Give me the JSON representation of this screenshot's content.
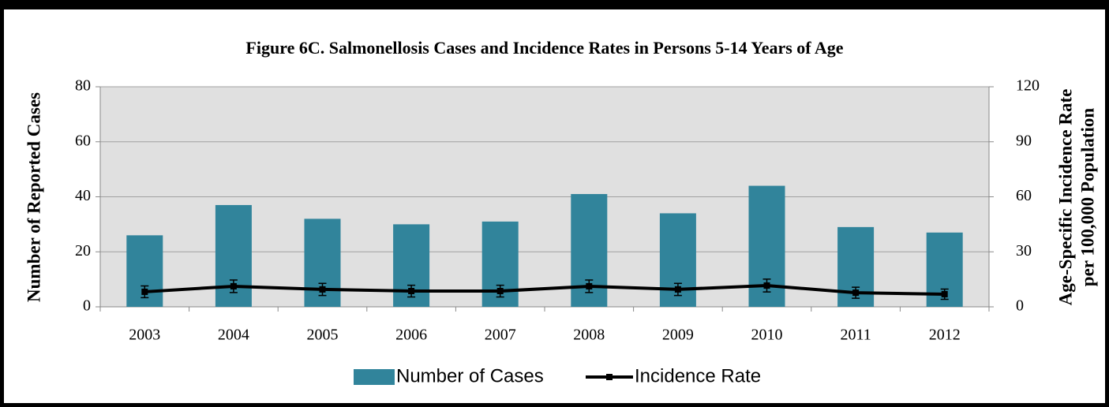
{
  "chart_data": {
    "type": "bar_line",
    "title": "Figure 6C. Salmonellosis Cases and Incidence Rates in Persons 5-14 Years of Age",
    "ylabel": "Number of Reported Cases",
    "y2label": [
      "Age-Specific Incidence Rate",
      "per 100,000 Population"
    ],
    "categories": [
      "2003",
      "2004",
      "2005",
      "2006",
      "2007",
      "2008",
      "2009",
      "2010",
      "2011",
      "2012"
    ],
    "series": [
      {
        "name": "Number of Cases",
        "type": "bar",
        "color": "#31849b",
        "values": [
          26,
          37,
          32,
          30,
          31,
          41,
          34,
          44,
          29,
          27
        ]
      },
      {
        "name": "Incidence Rate",
        "type": "line",
        "axis": "y2",
        "color": "#000000",
        "values": [
          8.2,
          11.2,
          9.5,
          8.6,
          8.6,
          11.2,
          9.5,
          11.6,
          7.7,
          6.9
        ],
        "errors": [
          3.2,
          3.4,
          3.3,
          3.2,
          3.2,
          3.4,
          3.3,
          3.5,
          3.0,
          2.8
        ]
      }
    ],
    "ylim": [
      0,
      80
    ],
    "yticks": [
      0,
      20,
      40,
      60,
      80
    ],
    "y2lim": [
      0,
      120
    ],
    "y2ticks": [
      0,
      30,
      60,
      90,
      120
    ],
    "grid": true,
    "legend": "bottom"
  }
}
